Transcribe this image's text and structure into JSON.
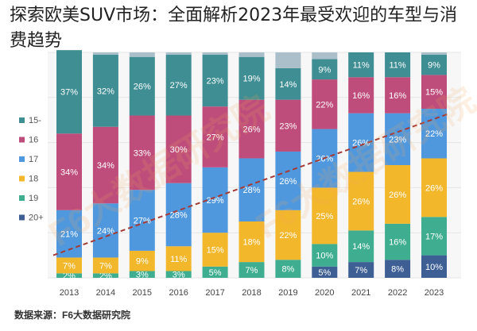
{
  "page": {
    "title": "探索欧美SUV市场：全面解析2023年最受欢迎的车型与消费趋势",
    "source": "数据来源：F6大数据研究院",
    "watermark": "F6大数据研究院"
  },
  "chart_data": {
    "type": "bar",
    "stacked": true,
    "percent": true,
    "categories": [
      "2013",
      "2014",
      "2015",
      "2016",
      "2017",
      "2018",
      "2019",
      "2020",
      "2021",
      "2022",
      "2023"
    ],
    "series": [
      {
        "name": "20+",
        "color": "#3d5f94",
        "values": [
          0,
          0,
          0,
          0,
          0,
          0,
          0,
          5,
          7,
          8,
          10
        ]
      },
      {
        "name": "19",
        "color": "#3fae90",
        "values": [
          2,
          2,
          3,
          3,
          5,
          7,
          8,
          10,
          14,
          16,
          17
        ]
      },
      {
        "name": "18",
        "color": "#f2b72b",
        "values": [
          7,
          7,
          9,
          11,
          15,
          18,
          22,
          25,
          26,
          26,
          26
        ]
      },
      {
        "name": "17",
        "color": "#4f98de",
        "values": [
          21,
          24,
          27,
          28,
          29,
          28,
          26,
          26,
          26,
          23,
          22
        ]
      },
      {
        "name": "16",
        "color": "#be4d7c",
        "values": [
          34,
          34,
          33,
          30,
          27,
          26,
          23,
          22,
          16,
          16,
          15
        ]
      },
      {
        "name": "15-",
        "color": "#3e8e93",
        "values": [
          37,
          32,
          26,
          27,
          23,
          19,
          14,
          9,
          11,
          11,
          9
        ]
      }
    ],
    "legend_order": [
      "15-",
      "16",
      "17",
      "18",
      "19",
      "20+"
    ],
    "trendline": {
      "style": "dashed",
      "color": "#a33a36",
      "from": [
        "2013",
        10
      ],
      "to": [
        "2023",
        73
      ]
    },
    "ylim": [
      0,
      100
    ],
    "xlabel": "",
    "ylabel": ""
  }
}
